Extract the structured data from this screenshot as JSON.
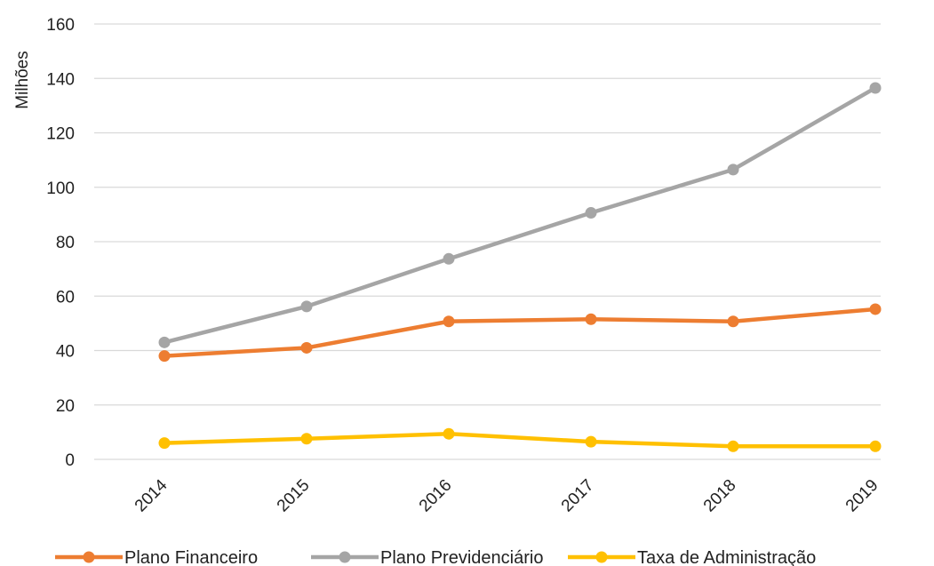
{
  "chart_data": {
    "type": "line",
    "title": "",
    "xlabel": "",
    "ylabel": "Milhões",
    "ylim": [
      0,
      160
    ],
    "yticks": [
      0,
      20,
      40,
      60,
      80,
      100,
      120,
      140,
      160
    ],
    "grid": true,
    "legend": "bottom",
    "categories": [
      "2014",
      "2015",
      "2016",
      "2017",
      "2018",
      "2019"
    ],
    "series": [
      {
        "name": "Plano Financeiro",
        "color": "#ED7D31",
        "values": [
          38,
          41,
          50.7,
          51.5,
          50.7,
          55.2
        ]
      },
      {
        "name": "Plano Previdenciário",
        "color": "#A5A5A5",
        "values": [
          43,
          56.2,
          73.7,
          90.6,
          106.5,
          136.5
        ]
      },
      {
        "name": "Taxa de Administração",
        "color": "#FFC000",
        "values": [
          6,
          7.6,
          9.4,
          6.5,
          4.8,
          4.8
        ]
      }
    ]
  }
}
